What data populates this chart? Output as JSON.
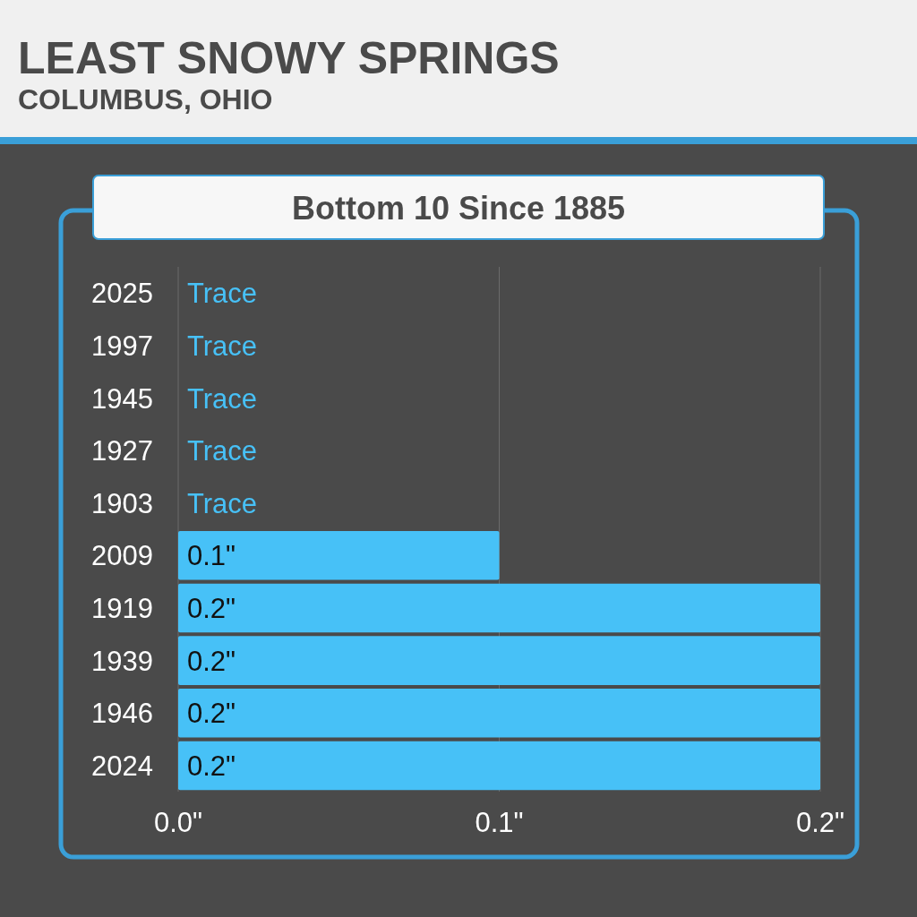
{
  "chart_data": {
    "type": "bar",
    "orientation": "horizontal",
    "title": "LEAST SNOWY SPRINGS",
    "subtitle": "COLUMBUS, OHIO",
    "annotations": [
      "Bottom 10 Since 1885"
    ],
    "categories": [
      "2025",
      "1997",
      "1945",
      "1927",
      "1903",
      "2009",
      "1919",
      "1939",
      "1946",
      "2024"
    ],
    "values": [
      0,
      0,
      0,
      0,
      0,
      0.1,
      0.2,
      0.2,
      0.2,
      0.2
    ],
    "value_labels": [
      "Trace",
      "Trace",
      "Trace",
      "Trace",
      "Trace",
      "0.1\"",
      "0.2\"",
      "0.2\"",
      "0.2\"",
      "0.2\""
    ],
    "color": "#47c1f7",
    "xlim": [
      0,
      0.2
    ],
    "xticks": [
      {
        "value": 0,
        "label": "0.0\""
      },
      {
        "value": 0.1,
        "label": "0.1\""
      },
      {
        "value": 0.2,
        "label": "0.2\""
      }
    ],
    "grid": "x"
  }
}
